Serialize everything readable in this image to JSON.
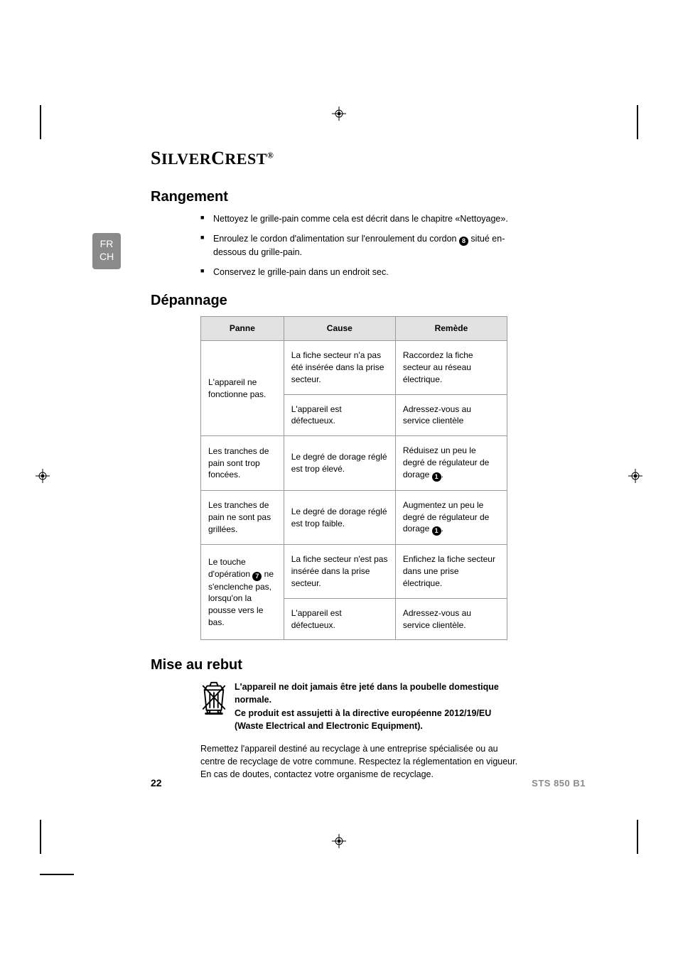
{
  "brand_html": "<span class='sc-s'>S</span>ILVER<span class='sc-s'>C</span>REST<span class='sc-reg'>®</span>",
  "lang_tab": {
    "line1": "FR",
    "line2": "CH"
  },
  "rangement": {
    "title": "Rangement",
    "items": [
      "Nettoyez le grille-pain comme cela est décrit dans le chapitre «Nettoyage».",
      "Enroulez le cordon d'alimentation sur l'enroulement du cordon <span class='inline-circ'>8</span> situé en-dessous du grille-pain.",
      "Conservez le grille-pain dans un endroit sec."
    ]
  },
  "depannage": {
    "title": "Dépannage",
    "headers": [
      "Panne",
      "Cause",
      "Remède"
    ],
    "rows": [
      {
        "panne": "L'appareil ne fonctionne pas.",
        "panne_rows": 2,
        "cells": [
          [
            "La fiche secteur n'a pas été insérée dans la prise secteur.",
            "Raccordez la fiche secteur au réseau électrique."
          ],
          [
            "L'appareil est défectueux.",
            "Adressez-vous au service clientèle"
          ]
        ]
      },
      {
        "panne": "Les tranches de pain sont trop foncées.",
        "panne_rows": 1,
        "cells": [
          [
            "Le degré de dorage réglé est trop élevé.",
            "Réduisez un peu le degré de régulateur de dorage <span class='inline-circ'>1</span>."
          ]
        ]
      },
      {
        "panne": "Les tranches de pain ne sont pas grillées.",
        "panne_rows": 1,
        "cells": [
          [
            "Le degré de dorage réglé est trop faible.",
            "Augmentez un peu le degré de régulateur de dorage <span class='inline-circ'>1</span>."
          ]
        ]
      },
      {
        "panne": "Le touche d'opération <span class='inline-circ'>7</span> ne s'enclenche pas, lorsqu'on la pousse vers le bas.",
        "panne_rows": 2,
        "cells": [
          [
            "La fiche secteur n'est pas insérée dans la prise secteur.",
            "Enfichez la fiche secteur dans une prise électrique."
          ],
          [
            "L'appareil est défectueux.",
            "Adressez-vous au service clientèle."
          ]
        ]
      }
    ]
  },
  "rebut": {
    "title": "Mise au rebut",
    "bold1": "L'appareil ne doit jamais être jeté dans la poubelle domestique normale.",
    "bold2": "Ce produit est assujetti à la directive européenne 2012/19/EU (Waste Electrical and Electronic Equipment).",
    "para": "Remettez l'appareil destiné au recyclage à une entreprise spécialisée ou au centre de recyclage de votre commune. Respectez la réglementation en vigueur. En cas de doutes, contactez votre organisme de recyclage."
  },
  "footer": {
    "page": "22",
    "model": "STS 850 B1"
  },
  "colors": {
    "tab_bg": "#8a8a8a",
    "table_border": "#9a9a9a",
    "table_header_bg": "#e2e2e2",
    "model_color": "#8a8a8a"
  }
}
